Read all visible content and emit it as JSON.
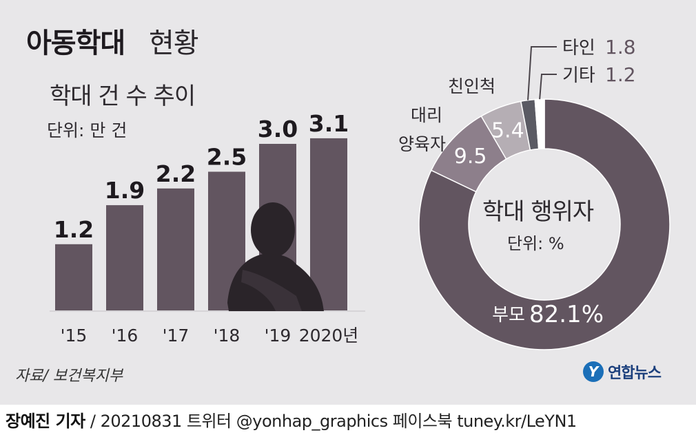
{
  "header": {
    "title_main": "아동학대",
    "title_sub": "현황"
  },
  "bar_panel": {
    "heading": "학대 건 수 추이",
    "unit": "단위: 만 건"
  },
  "donut_panel": {
    "heading": "학대 행위자",
    "unit": "단위: %"
  },
  "source": "자료/ 보건복지부",
  "logo": {
    "mark": "Y",
    "text": "연합뉴스"
  },
  "footer": {
    "reporter": "장예진 기자",
    "rest": " / 20210831 트위터 @yonhap_graphics  페이스북 tuney.kr/LeYN1"
  },
  "colors": {
    "background": "#e8e7e9",
    "bar": "#625560",
    "silhouette": "#2a2429",
    "parent": "#625560",
    "foster": "#8d7f8b",
    "relative": "#b5aeb4",
    "stranger": "#5a5a63",
    "other": "#ffffff"
  },
  "chart_data": [
    {
      "type": "bar",
      "title": "학대 건 수 추이",
      "unit": "단위: 만 건",
      "categories": [
        "'15",
        "'16",
        "'17",
        "'18",
        "'19",
        "2020년"
      ],
      "values": [
        1.2,
        1.9,
        2.2,
        2.5,
        3.0,
        3.1
      ],
      "value_labels": [
        "1.2",
        "1.9",
        "2.2",
        "2.5",
        "3.0",
        "3.1"
      ]
    },
    {
      "type": "pie",
      "title": "학대 행위자",
      "unit": "단위: %",
      "slices": [
        {
          "label": "부모",
          "value": 82.1,
          "value_text": "82.1%",
          "color": "#625560"
        },
        {
          "label": "대리 양육자",
          "value": 9.5,
          "value_text": "9.5",
          "color": "#8d7f8b"
        },
        {
          "label": "친인척",
          "value": 5.4,
          "value_text": "5.4",
          "color": "#b5aeb4"
        },
        {
          "label": "타인",
          "value": 1.8,
          "value_text": "1.8",
          "color": "#5a5a63"
        },
        {
          "label": "기타",
          "value": 1.2,
          "value_text": "1.2",
          "color": "#ffffff"
        }
      ]
    }
  ]
}
